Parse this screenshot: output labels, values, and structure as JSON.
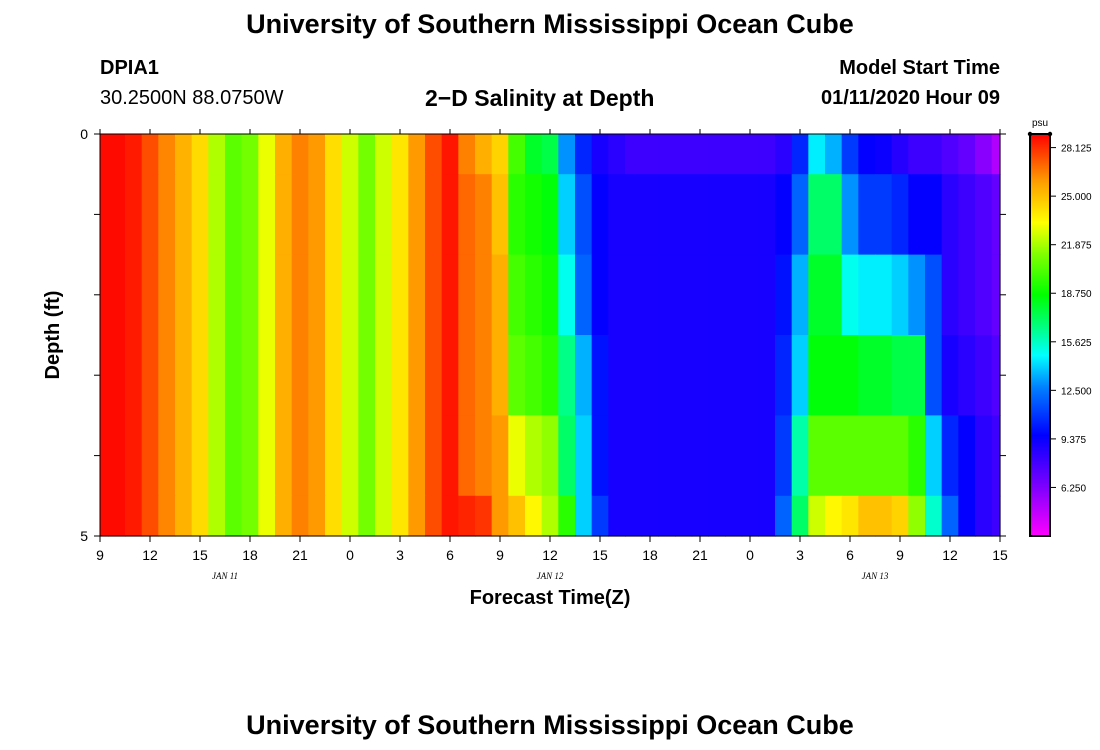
{
  "header": {
    "title": "University of Southern Mississippi Ocean Cube",
    "station": "DPIA1",
    "coords": "30.2500N 88.0750W",
    "plot_title": "2−D Salinity at Depth",
    "model_start_label": "Model Start Time",
    "model_start_value": "01/11/2020 Hour 09"
  },
  "footer": {
    "title": "University of Southern Mississippi Ocean Cube"
  },
  "chart_data": {
    "type": "heatmap",
    "title": "2−D Salinity at Depth",
    "xlabel": "Forecast Time(Z)",
    "ylabel": "Depth (ft)",
    "ylim": [
      0,
      5
    ],
    "xlim_hours": [
      0,
      54
    ],
    "y_ticks": [
      0,
      1,
      2,
      3,
      4,
      5
    ],
    "y_tick_labels": [
      "0",
      "",
      "",
      "",
      "",
      "5"
    ],
    "x_tick_hours": [
      0,
      3,
      6,
      9,
      12,
      15,
      18,
      21,
      24,
      27,
      30,
      33,
      36,
      39,
      42,
      45,
      48,
      51,
      54
    ],
    "x_tick_labels": [
      "9",
      "12",
      "15",
      "18",
      "21",
      "0",
      "3",
      "6",
      "9",
      "12",
      "15",
      "18",
      "21",
      "0",
      "3",
      "6",
      "9",
      "12",
      "15"
    ],
    "date_labels": [
      {
        "text": "JAN 11",
        "hour": 7.5
      },
      {
        "text": "JAN 12",
        "hour": 27
      },
      {
        "text": "JAN 13",
        "hour": 46.5
      }
    ],
    "colorbar": {
      "unit": "psu",
      "min": 3.125,
      "max": 29.0,
      "ticks": [
        28.125,
        25.0,
        21.875,
        18.75,
        15.625,
        12.5,
        9.375,
        6.25
      ],
      "tick_labels": [
        "28.125",
        "25.000",
        "21.875",
        "18.750",
        "15.625",
        "12.500",
        "9.375",
        "6.250"
      ]
    },
    "depth_bins": [
      "0.0-0.5",
      "0.5-1.5",
      "1.5-2.5",
      "2.5-3.5",
      "3.5-4.5",
      "4.5-5.0"
    ],
    "time_hours": [
      0,
      1,
      2,
      3,
      4,
      5,
      6,
      7,
      8,
      9,
      10,
      11,
      12,
      13,
      14,
      15,
      16,
      17,
      18,
      19,
      20,
      21,
      22,
      23,
      24,
      25,
      26,
      27,
      28,
      29,
      30,
      31,
      32,
      33,
      34,
      35,
      36,
      37,
      38,
      39,
      40,
      41,
      42,
      43,
      44,
      45,
      46,
      47,
      48,
      49,
      50,
      51,
      52,
      53,
      54
    ],
    "salinity": [
      [
        28.8,
        28.8,
        28.5,
        27.5,
        26.4,
        25.4,
        24.3,
        22.0,
        20.5,
        21.0,
        23.0,
        25.5,
        26.5,
        26.0,
        24.2,
        22.5,
        21.0,
        22.5,
        24.0,
        26.0,
        27.5,
        28.6,
        26.5,
        25.5,
        24.5,
        20.0,
        18.0,
        17.5,
        13.0,
        10.5,
        9.0,
        8.5,
        8.0,
        8.0,
        8.0,
        8.0,
        8.0,
        8.0,
        8.0,
        8.0,
        8.0,
        8.5,
        10.5,
        14.5,
        13.5,
        11.0,
        9.5,
        9.3,
        8.6,
        8.0,
        8.0,
        7.5,
        7.0,
        6.0,
        5.0
      ],
      [
        28.8,
        28.8,
        28.5,
        27.5,
        26.4,
        25.4,
        24.3,
        22.0,
        20.5,
        21.0,
        23.0,
        25.5,
        26.5,
        26.0,
        24.2,
        22.5,
        21.0,
        22.5,
        24.0,
        26.0,
        27.5,
        28.6,
        27.0,
        26.5,
        25.0,
        19.5,
        19.0,
        18.5,
        14.0,
        11.5,
        9.5,
        9.0,
        9.0,
        9.0,
        9.0,
        9.0,
        9.0,
        9.0,
        9.0,
        9.0,
        9.0,
        9.5,
        12.0,
        17.0,
        17.0,
        13.0,
        11.0,
        11.0,
        10.5,
        9.5,
        9.5,
        8.5,
        8.0,
        7.5,
        7.0
      ],
      [
        28.8,
        28.8,
        28.5,
        27.5,
        26.4,
        25.4,
        24.3,
        22.0,
        20.5,
        21.0,
        23.0,
        25.5,
        26.5,
        26.0,
        24.2,
        22.5,
        21.0,
        22.5,
        24.0,
        26.0,
        27.5,
        28.6,
        27.0,
        26.5,
        25.5,
        20.0,
        19.5,
        19.0,
        15.0,
        12.0,
        9.5,
        9.0,
        9.0,
        9.0,
        9.0,
        9.0,
        9.0,
        9.0,
        9.0,
        9.0,
        9.0,
        10.0,
        13.5,
        18.0,
        18.0,
        15.0,
        14.5,
        14.5,
        14.0,
        13.0,
        11.5,
        8.5,
        8.0,
        7.5,
        7.0
      ],
      [
        28.8,
        28.8,
        28.5,
        27.5,
        26.4,
        25.4,
        24.3,
        22.0,
        20.5,
        21.0,
        23.0,
        25.5,
        26.5,
        26.0,
        24.2,
        22.5,
        21.0,
        22.5,
        24.0,
        26.0,
        27.5,
        28.6,
        27.0,
        26.5,
        25.5,
        20.5,
        20.0,
        19.5,
        16.5,
        13.5,
        10.0,
        9.0,
        9.0,
        9.0,
        9.0,
        9.0,
        9.0,
        9.0,
        9.0,
        9.0,
        9.0,
        10.5,
        14.0,
        18.5,
        18.5,
        18.5,
        18.0,
        18.0,
        17.5,
        17.5,
        11.5,
        9.0,
        8.5,
        8.0,
        7.5
      ],
      [
        28.8,
        28.8,
        28.5,
        27.5,
        26.4,
        25.4,
        24.3,
        22.0,
        20.5,
        21.0,
        23.0,
        25.5,
        26.5,
        26.0,
        24.2,
        22.5,
        21.0,
        22.5,
        24.0,
        26.0,
        27.5,
        28.6,
        27.0,
        26.5,
        26.0,
        23.0,
        22.0,
        21.5,
        17.0,
        14.0,
        10.0,
        9.0,
        9.0,
        9.0,
        9.0,
        9.0,
        9.0,
        9.0,
        9.0,
        9.0,
        9.0,
        11.0,
        16.0,
        20.5,
        20.5,
        20.5,
        20.5,
        20.5,
        20.5,
        19.5,
        14.0,
        10.5,
        9.5,
        8.5,
        8.0
      ],
      [
        28.8,
        28.8,
        28.5,
        27.5,
        26.4,
        25.4,
        24.3,
        22.0,
        20.5,
        21.0,
        23.0,
        25.5,
        26.5,
        26.0,
        24.2,
        22.5,
        21.0,
        22.5,
        24.0,
        26.0,
        27.5,
        28.6,
        28.3,
        28.0,
        26.0,
        25.0,
        23.5,
        22.0,
        19.5,
        14.0,
        11.0,
        9.0,
        9.0,
        9.0,
        9.0,
        9.0,
        9.0,
        9.0,
        9.0,
        9.0,
        9.0,
        12.0,
        17.0,
        22.5,
        23.5,
        24.0,
        25.0,
        25.0,
        24.5,
        21.5,
        15.5,
        12.0,
        9.5,
        8.5,
        8.0
      ]
    ]
  }
}
